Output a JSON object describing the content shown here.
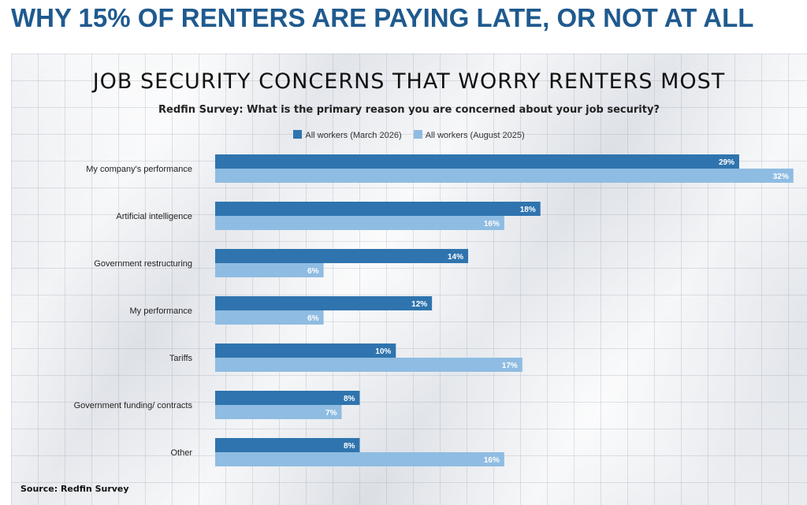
{
  "slide": {
    "title": "WHY 15% OF RENTERS ARE PAYING LATE, OR NOT AT ALL",
    "source": "Source: Redfin Survey"
  },
  "chart_data": {
    "type": "bar",
    "orientation": "horizontal",
    "title": "JOB SECURITY CONCERNS THAT WORRY RENTERS MOST",
    "subtitle": "Redfin Survey: What is the primary reason you are concerned about your job security?",
    "categories": [
      "My company's performance",
      "Artificial intelligence",
      "Government restructuring",
      "My performance",
      "Tariffs",
      "Government funding/ contracts",
      "Other"
    ],
    "series": [
      {
        "name": "All workers (March 2026)",
        "color": "#2f74ae",
        "values": [
          29,
          18,
          14,
          12,
          10,
          8,
          8
        ]
      },
      {
        "name": "All workers (August 2025)",
        "color": "#8fbce2",
        "values": [
          32,
          16,
          6,
          6,
          17,
          7,
          16
        ]
      }
    ],
    "value_suffix": "%",
    "xlim": [
      0,
      32
    ],
    "grid": false,
    "legend_position": "top"
  }
}
